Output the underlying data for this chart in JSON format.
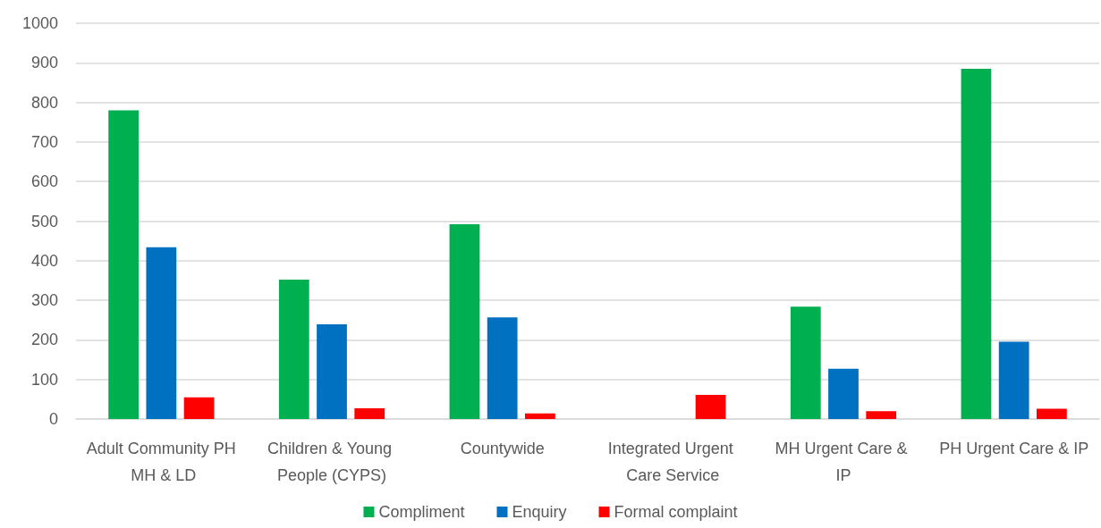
{
  "chart_data": {
    "type": "bar",
    "categories": [
      "Adult Community PH MH & LD",
      "Children & Young People (CYPS)",
      "Countywide",
      "Integrated Urgent Care Service",
      "MH Urgent Care & IP",
      "PH Urgent Care & IP"
    ],
    "series": [
      {
        "name": "Compliment",
        "color": "#00b050",
        "values": [
          780,
          352,
          492,
          null,
          284,
          885
        ]
      },
      {
        "name": "Enquiry",
        "color": "#0070c0",
        "values": [
          434,
          239,
          257,
          0,
          127,
          195
        ]
      },
      {
        "name": "Formal complaint",
        "color": "#ff0000",
        "values": [
          55,
          27,
          14,
          61,
          20,
          26
        ]
      }
    ],
    "ylim": [
      0,
      1000
    ],
    "yticks": [
      0,
      100,
      200,
      300,
      400,
      500,
      600,
      700,
      800,
      900,
      1000
    ],
    "grid": "y",
    "legend": "bottom"
  }
}
